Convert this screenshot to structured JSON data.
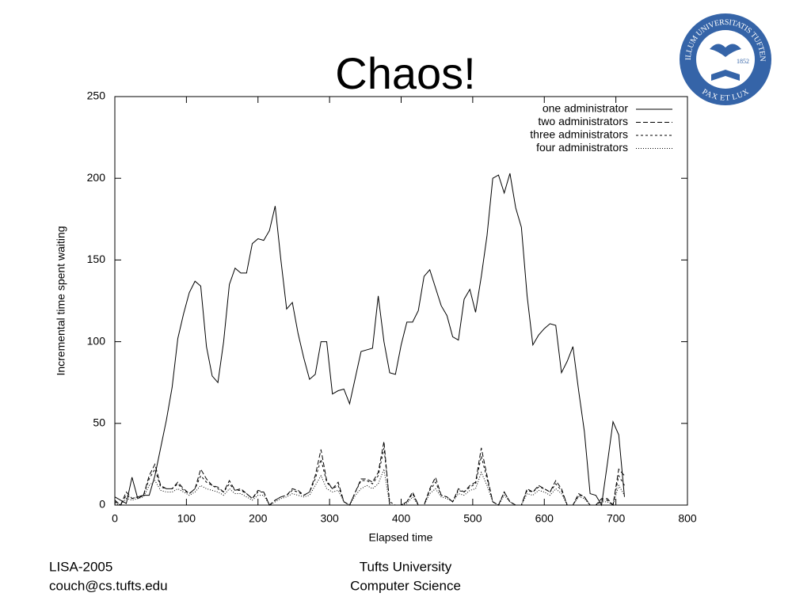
{
  "slide": {
    "title": "Chaos!",
    "footer_left": [
      "LISA-2005",
      "couch@cs.tufts.edu"
    ],
    "footer_center": [
      "Tufts University",
      "Computer Science"
    ]
  },
  "logo": {
    "ring": "SIGILLUM UNIVERSITATIS TUFTENSIS",
    "motto": "PAX ET LUX",
    "year": "1852"
  },
  "chart_data": {
    "type": "line",
    "x_label": "Elapsed time",
    "y_label": "Incremental time spent waiting",
    "xlim": [
      0,
      800
    ],
    "ylim": [
      0,
      250
    ],
    "xticks": [
      0,
      100,
      200,
      300,
      400,
      500,
      600,
      700,
      800
    ],
    "yticks": [
      0,
      50,
      100,
      150,
      200,
      250
    ],
    "grid": false,
    "legend": "upper right",
    "x": [
      0,
      8,
      16,
      24,
      32,
      40,
      48,
      56,
      64,
      72,
      80,
      88,
      96,
      104,
      112,
      120,
      128,
      136,
      144,
      152,
      160,
      168,
      176,
      184,
      192,
      200,
      208,
      216,
      224,
      232,
      240,
      248,
      256,
      264,
      272,
      280,
      288,
      296,
      304,
      312,
      320,
      328,
      336,
      344,
      352,
      360,
      368,
      376,
      384,
      392,
      400,
      408,
      416,
      424,
      432,
      440,
      448,
      456,
      464,
      472,
      480,
      488,
      496,
      504,
      512,
      520,
      528,
      536,
      544,
      552,
      560,
      568,
      576,
      584,
      592,
      600,
      608,
      616,
      624,
      632,
      640,
      648,
      656,
      664,
      672,
      680,
      688,
      696,
      704,
      712
    ],
    "series": [
      {
        "name": "one administrator",
        "color": "#000000",
        "style": "solid",
        "values": [
          5,
          3,
          1,
          17,
          4,
          6,
          6,
          18,
          35,
          52,
          72,
          102,
          117,
          130,
          137,
          134,
          97,
          79,
          75,
          100,
          135,
          145,
          142,
          142,
          160,
          163,
          162,
          168,
          183,
          150,
          120,
          124,
          105,
          90,
          77,
          80,
          100,
          100,
          68,
          70,
          71,
          62,
          78,
          94,
          95,
          96,
          128,
          100,
          81,
          80,
          98,
          112,
          112,
          119,
          140,
          144,
          133,
          122,
          116,
          103,
          101,
          126,
          132,
          118,
          140,
          165,
          200,
          202,
          191,
          203,
          182,
          170,
          128,
          98,
          104,
          108,
          111,
          110,
          81,
          88,
          97,
          70,
          45,
          7,
          6,
          0,
          25,
          51,
          43,
          5
        ]
      },
      {
        "name": "two administrators",
        "color": "#000000",
        "style": "dashed",
        "values": [
          3,
          0,
          8,
          4,
          5,
          6,
          18,
          25,
          12,
          10,
          10,
          14,
          10,
          7,
          10,
          22,
          16,
          12,
          11,
          8,
          15,
          9,
          10,
          7,
          4,
          9,
          8,
          0,
          3,
          5,
          6,
          10,
          9,
          6,
          8,
          18,
          34,
          15,
          10,
          14,
          2,
          0,
          8,
          16,
          16,
          14,
          20,
          39,
          0,
          0,
          0,
          2,
          8,
          0,
          0,
          10,
          17,
          6,
          5,
          2,
          10,
          8,
          12,
          14,
          35,
          18,
          2,
          0,
          8,
          2,
          0,
          0,
          10,
          8,
          12,
          10,
          8,
          15,
          10,
          0,
          0,
          7,
          5,
          0,
          0,
          4,
          4,
          0,
          22,
          18
        ]
      },
      {
        "name": "three administrators",
        "color": "#000000",
        "style": "short-dashed",
        "values": [
          2,
          0,
          6,
          4,
          5,
          6,
          16,
          22,
          11,
          10,
          10,
          13,
          9,
          7,
          10,
          18,
          14,
          12,
          10,
          8,
          13,
          9,
          9,
          7,
          4,
          8,
          8,
          0,
          3,
          5,
          6,
          9,
          8,
          6,
          8,
          16,
          28,
          14,
          10,
          12,
          2,
          0,
          8,
          15,
          15,
          13,
          18,
          35,
          2,
          0,
          0,
          2,
          7,
          0,
          0,
          9,
          14,
          6,
          5,
          2,
          9,
          8,
          11,
          13,
          30,
          16,
          2,
          0,
          8,
          2,
          0,
          0,
          9,
          8,
          11,
          10,
          8,
          13,
          9,
          0,
          0,
          6,
          5,
          0,
          0,
          3,
          3,
          0,
          18,
          12
        ]
      },
      {
        "name": "four administrators",
        "color": "#000000",
        "style": "dotted",
        "values": [
          1,
          0,
          4,
          3,
          4,
          5,
          12,
          15,
          9,
          8,
          8,
          10,
          8,
          6,
          8,
          12,
          10,
          9,
          8,
          6,
          10,
          7,
          7,
          5,
          3,
          6,
          6,
          0,
          2,
          4,
          5,
          7,
          6,
          5,
          6,
          12,
          18,
          10,
          8,
          9,
          2,
          0,
          6,
          10,
          12,
          10,
          13,
          22,
          0,
          0,
          0,
          1,
          5,
          0,
          0,
          7,
          10,
          5,
          4,
          2,
          7,
          6,
          9,
          10,
          20,
          12,
          2,
          0,
          6,
          2,
          0,
          0,
          7,
          6,
          9,
          8,
          6,
          10,
          7,
          0,
          0,
          5,
          4,
          0,
          0,
          2,
          2,
          0,
          12,
          6
        ]
      }
    ]
  }
}
